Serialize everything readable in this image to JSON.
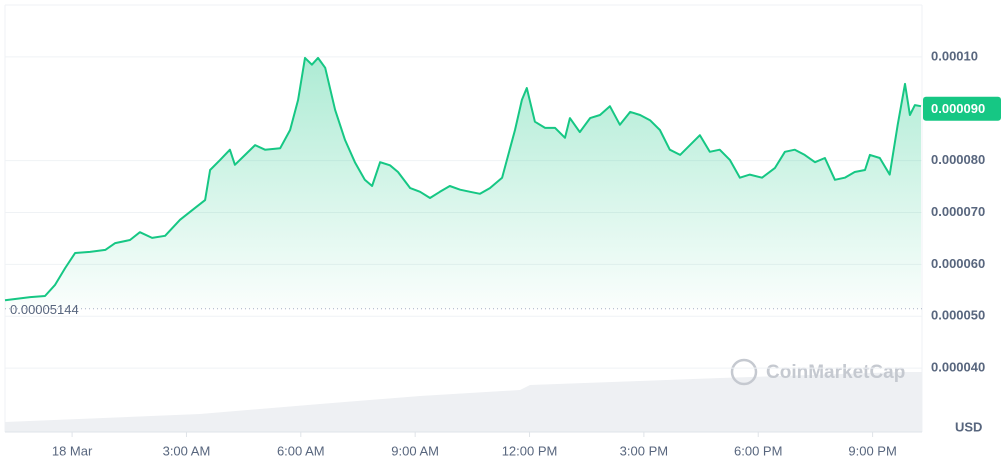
{
  "chart_data": {
    "type": "line",
    "x": [
      -1.76,
      -1.1,
      -0.71,
      -0.45,
      -0.18,
      0.08,
      0.47,
      0.87,
      1.13,
      1.52,
      1.78,
      2.1,
      2.44,
      2.83,
      3.23,
      3.49,
      3.62,
      3.88,
      4.14,
      4.27,
      4.54,
      4.8,
      5.06,
      5.46,
      5.72,
      5.93,
      6.11,
      6.29,
      6.45,
      6.64,
      6.9,
      7.16,
      7.42,
      7.68,
      7.87,
      8.08,
      8.34,
      8.55,
      8.87,
      9.13,
      9.39,
      9.65,
      9.91,
      10.18,
      10.44,
      10.7,
      10.96,
      11.28,
      11.62,
      11.8,
      11.93,
      12.14,
      12.41,
      12.67,
      12.93,
      13.06,
      13.32,
      13.59,
      13.85,
      14.11,
      14.37,
      14.64,
      14.9,
      15.16,
      15.42,
      15.68,
      15.95,
      16.21,
      16.47,
      16.73,
      16.99,
      17.26,
      17.52,
      17.78,
      18.1,
      18.44,
      18.7,
      18.96,
      19.22,
      19.49,
      19.75,
      20.01,
      20.27,
      20.53,
      20.8,
      20.93,
      21.19,
      21.45,
      21.66,
      21.85,
      21.98,
      22.11,
      22.27
    ],
    "series": [
      {
        "color": "#16c784",
        "values": [
          5.31e-05,
          5.37e-05,
          5.39e-05,
          5.6e-05,
          5.93e-05,
          6.22e-05,
          6.24e-05,
          6.28e-05,
          6.41e-05,
          6.47e-05,
          6.62e-05,
          6.51e-05,
          6.55e-05,
          6.86e-05,
          7.09e-05,
          7.24e-05,
          7.82e-05,
          8.01e-05,
          8.21e-05,
          7.92e-05,
          8.11e-05,
          8.3e-05,
          8.21e-05,
          8.24e-05,
          8.59e-05,
          9.17e-05,
          9.98e-05,
          9.85e-05,
          9.98e-05,
          9.79e-05,
          8.98e-05,
          8.4e-05,
          7.97e-05,
          7.63e-05,
          7.51e-05,
          7.97e-05,
          7.91e-05,
          7.78e-05,
          7.47e-05,
          7.4e-05,
          7.28e-05,
          7.4e-05,
          7.51e-05,
          7.44e-05,
          7.4e-05,
          7.36e-05,
          7.47e-05,
          7.67e-05,
          8.59e-05,
          9.17e-05,
          9.4e-05,
          8.75e-05,
          8.63e-05,
          8.63e-05,
          8.44e-05,
          8.82e-05,
          8.55e-05,
          8.82e-05,
          8.88e-05,
          9.05e-05,
          8.69e-05,
          8.94e-05,
          8.88e-05,
          8.78e-05,
          8.59e-05,
          8.21e-05,
          8.11e-05,
          8.3e-05,
          8.49e-05,
          8.17e-05,
          8.21e-05,
          8.01e-05,
          7.67e-05,
          7.73e-05,
          7.67e-05,
          7.86e-05,
          8.17e-05,
          8.21e-05,
          8.11e-05,
          7.97e-05,
          8.05e-05,
          7.63e-05,
          7.67e-05,
          7.78e-05,
          7.82e-05,
          8.11e-05,
          8.05e-05,
          7.73e-05,
          8.69e-05,
          9.48e-05,
          8.88e-05,
          9.07e-05,
          9.05e-05
        ]
      }
    ],
    "xlim": [
      -1.76,
      22.27
    ],
    "xticks": [
      {
        "value": 0,
        "label": "18 Mar"
      },
      {
        "value": 3,
        "label": "3:00 AM"
      },
      {
        "value": 6,
        "label": "6:00 AM"
      },
      {
        "value": 9,
        "label": "9:00 AM"
      },
      {
        "value": 12,
        "label": "12:00 PM"
      },
      {
        "value": 15,
        "label": "3:00 PM"
      },
      {
        "value": 18,
        "label": "6:00 PM"
      },
      {
        "value": 21,
        "label": "9:00 PM"
      }
    ],
    "ylim": [
      3e-05,
      0.00011
    ],
    "yticks": [
      {
        "value": 0.0001,
        "label": "0.00010"
      },
      {
        "value": 8e-05,
        "label": "0.000080"
      },
      {
        "value": 7e-05,
        "label": "0.000070"
      },
      {
        "value": 6e-05,
        "label": "0.000060"
      },
      {
        "value": 5e-05,
        "label": "0.000050"
      },
      {
        "value": 4e-05,
        "label": "0.000040"
      }
    ],
    "grid": true,
    "baseline": {
      "value": 5.144e-05,
      "label": "0.00005144"
    },
    "current_price": {
      "value": 9e-05,
      "label": "0.000090"
    },
    "currency": "USD",
    "watermark": "CoinMarketCap"
  }
}
